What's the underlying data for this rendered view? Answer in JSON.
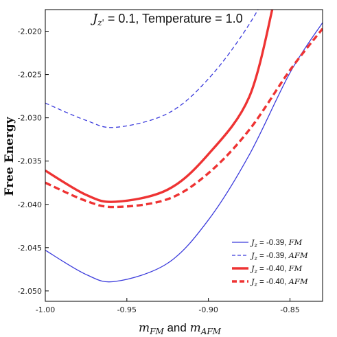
{
  "chart_data": {
    "type": "line",
    "title": "J_{z'} = 0.1, Temperature = 1.0",
    "title_parts": {
      "symbol": "J",
      "subscript": "z'",
      "rest": " = 0.1, Temperature = 1.0"
    },
    "xlabel": "m_{FM} and m_{AFM}",
    "xlabel_parts": {
      "m1": "m",
      "s1": "FM",
      "mid": " and ",
      "m2": "m",
      "s2": "AFM"
    },
    "ylabel": "Free Energy",
    "xlim": [
      -1.0,
      -0.83
    ],
    "ylim": [
      -2.0512,
      -2.0175
    ],
    "xticks": [
      -1.0,
      -0.95,
      -0.9,
      -0.85
    ],
    "xtick_labels": [
      "-1.00",
      "-0.95",
      "-0.90",
      "-0.85"
    ],
    "yticks": [
      -2.05,
      -2.045,
      -2.04,
      -2.035,
      -2.03,
      -2.025,
      -2.02
    ],
    "ytick_labels": [
      "-2.050",
      "-2.045",
      "-2.040",
      "-2.035",
      "-2.030",
      "-2.025",
      "-2.020"
    ],
    "legend_position": "bottom-right",
    "grid": false,
    "series": [
      {
        "name": "J_z = -0.39, FM",
        "label_parts": {
          "sym": "J",
          "sub": "z",
          "val": " = -0.39, ",
          "mode": "FM"
        },
        "color": "#3b3bdc",
        "width": 1.3,
        "dash": "",
        "x": [
          -1.0,
          -0.975,
          -0.957,
          -0.925,
          -0.9,
          -0.875,
          -0.85,
          -0.83
        ],
        "y": [
          -2.0453,
          -2.0481,
          -2.0489,
          -2.0468,
          -2.0418,
          -2.0343,
          -2.0248,
          -2.019
        ]
      },
      {
        "name": "J_z = -0.39, AFM",
        "label_parts": {
          "sym": "J",
          "sub": "z",
          "val": " = -0.39, ",
          "mode": "AFM"
        },
        "color": "#3b3bdc",
        "width": 1.3,
        "dash": "6,4",
        "x": [
          -1.0,
          -0.975,
          -0.957,
          -0.925,
          -0.9,
          -0.875,
          -0.852
        ],
        "y": [
          -2.0283,
          -2.0303,
          -2.0311,
          -2.0295,
          -2.0255,
          -2.0192,
          -2.0114
        ]
      },
      {
        "name": "J_z = -0.40, FM",
        "label_parts": {
          "sym": "J",
          "sub": "z",
          "val": " = -0.40, ",
          "mode": "FM"
        },
        "color": "#ee3333",
        "width": 3.4,
        "dash": "",
        "x": [
          -1.0,
          -0.975,
          -0.957,
          -0.925,
          -0.9,
          -0.875,
          -0.86
        ],
        "y": [
          -2.0361,
          -2.0389,
          -2.0397,
          -2.0383,
          -2.0342,
          -2.0276,
          -2.0168
        ]
      },
      {
        "name": "J_z = -0.40, AFM",
        "label_parts": {
          "sym": "J",
          "sub": "z",
          "val": " = -0.40, ",
          "mode": "AFM"
        },
        "color": "#ee3333",
        "width": 3.4,
        "dash": "9,5",
        "x": [
          -1.0,
          -0.975,
          -0.957,
          -0.925,
          -0.9,
          -0.875,
          -0.85,
          -0.83
        ],
        "y": [
          -2.0375,
          -2.0396,
          -2.0403,
          -2.0394,
          -2.0364,
          -2.0314,
          -2.0245,
          -2.0197
        ]
      }
    ]
  }
}
